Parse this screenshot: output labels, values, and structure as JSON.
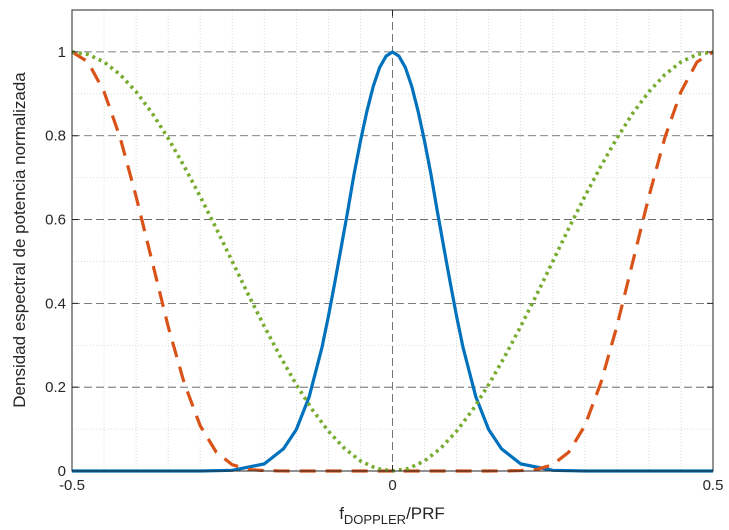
{
  "chart_data": {
    "type": "line",
    "title": "",
    "xlabel": "f",
    "xlabel_sub": "DOPPLER",
    "xlabel_suffix": "/PRF",
    "ylabel": "Densidad espectral de potencia normalizada",
    "xlim": [
      -0.5,
      0.5
    ],
    "ylim": [
      0,
      1.1
    ],
    "xticks": [
      -0.5,
      0,
      0.5
    ],
    "xtick_labels": [
      "-0.5",
      "0",
      "0.5"
    ],
    "yticks": [
      0,
      0.2,
      0.4,
      0.6,
      0.8,
      1
    ],
    "ytick_labels": [
      "0",
      "0.2",
      "0.4",
      "0.6",
      "0.8",
      "1"
    ],
    "grid": true,
    "minor_grid": true,
    "legend": "none",
    "series": [
      {
        "style": "solid",
        "color": "#0072BD",
        "x": [
          -0.5,
          -0.3,
          -0.25,
          -0.2,
          -0.17,
          -0.15,
          -0.13,
          -0.11,
          -0.1,
          -0.09,
          -0.08,
          -0.07,
          -0.06,
          -0.05,
          -0.04,
          -0.03,
          -0.02,
          -0.01,
          0,
          0.01,
          0.02,
          0.03,
          0.04,
          0.05,
          0.06,
          0.07,
          0.08,
          0.09,
          0.1,
          0.11,
          0.13,
          0.15,
          0.17,
          0.2,
          0.25,
          0.3,
          0.5
        ],
        "y": [
          0,
          0,
          0.0016,
          0.017,
          0.053,
          0.099,
          0.177,
          0.295,
          0.369,
          0.45,
          0.534,
          0.619,
          0.708,
          0.787,
          0.858,
          0.918,
          0.963,
          0.99,
          1,
          0.99,
          0.963,
          0.918,
          0.858,
          0.787,
          0.708,
          0.619,
          0.534,
          0.45,
          0.369,
          0.295,
          0.177,
          0.099,
          0.053,
          0.017,
          0.0016,
          0,
          0
        ]
      },
      {
        "style": "dashed",
        "color": "#D95319",
        "x": [
          -0.5,
          -0.475,
          -0.45,
          -0.425,
          -0.4,
          -0.375,
          -0.35,
          -0.325,
          -0.3,
          -0.275,
          -0.25,
          -0.225,
          -0.2,
          -0.175,
          -0.15,
          -0.125,
          -0.1,
          -0.075,
          -0.05,
          -0.025,
          0,
          0.025,
          0.05,
          0.075,
          0.1,
          0.125,
          0.15,
          0.175,
          0.2,
          0.225,
          0.25,
          0.275,
          0.3,
          0.325,
          0.35,
          0.375,
          0.4,
          0.425,
          0.45,
          0.475,
          0.5
        ],
        "y": [
          1,
          0.976,
          0.905,
          0.796,
          0.655,
          0.5,
          0.345,
          0.21,
          0.108,
          0.045,
          0.015,
          0.0037,
          0.001,
          0.0002,
          0,
          0,
          0,
          0,
          0,
          0,
          0,
          0,
          0,
          0,
          0,
          0,
          0,
          0.0002,
          0.001,
          0.0037,
          0.015,
          0.045,
          0.108,
          0.21,
          0.345,
          0.5,
          0.655,
          0.796,
          0.905,
          0.976,
          1
        ]
      },
      {
        "style": "dotted",
        "color": "#77AC30",
        "x": [
          -0.5,
          -0.475,
          -0.45,
          -0.425,
          -0.4,
          -0.375,
          -0.35,
          -0.325,
          -0.3,
          -0.275,
          -0.25,
          -0.225,
          -0.2,
          -0.175,
          -0.15,
          -0.125,
          -0.1,
          -0.075,
          -0.05,
          -0.025,
          0,
          0.025,
          0.05,
          0.075,
          0.1,
          0.125,
          0.15,
          0.175,
          0.2,
          0.225,
          0.25,
          0.275,
          0.3,
          0.325,
          0.35,
          0.375,
          0.4,
          0.425,
          0.45,
          0.475,
          0.5
        ],
        "y": [
          1,
          0.994,
          0.976,
          0.946,
          0.905,
          0.854,
          0.794,
          0.727,
          0.655,
          0.579,
          0.5,
          0.421,
          0.345,
          0.273,
          0.206,
          0.146,
          0.095,
          0.054,
          0.024,
          0.006,
          0,
          0.006,
          0.024,
          0.054,
          0.095,
          0.146,
          0.206,
          0.273,
          0.345,
          0.421,
          0.5,
          0.579,
          0.655,
          0.727,
          0.794,
          0.854,
          0.905,
          0.946,
          0.976,
          0.994,
          1
        ]
      }
    ]
  }
}
